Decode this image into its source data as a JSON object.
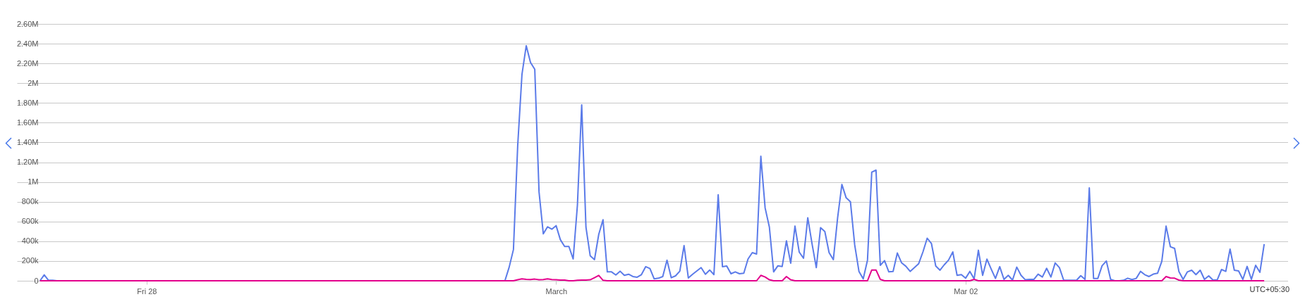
{
  "chart_data": {
    "type": "line",
    "x": [
      "--02-27T17:45",
      "--02-27T18:00",
      "--02-27T18:15",
      "--02-27T18:30",
      "--02-27T18:45",
      "--02-27T21:00",
      "--02-28T00:00",
      "--02-28T03:00",
      "--02-28T06:00",
      "--02-28T09:00",
      "--02-28T12:00",
      "--02-28T15:00",
      "--02-28T18:00",
      "--02-28T20:45",
      "--02-28T21:00",
      "--02-28T21:15",
      "--02-28T21:30",
      "--02-28T21:45",
      "--02-28T22:00",
      "--02-28T22:15",
      "--02-28T22:30",
      "--02-28T22:45",
      "--02-28T23:00",
      "--02-28T23:15",
      "--02-28T23:30",
      "--02-28T23:45",
      "--03-01T00:00",
      "--03-01T00:15",
      "--03-01T00:30",
      "--03-01T00:45",
      "--03-01T01:00",
      "--03-01T01:15",
      "--03-01T01:30",
      "--03-01T01:45",
      "--03-01T02:00",
      "--03-01T02:15",
      "--03-01T02:30",
      "--03-01T02:45",
      "--03-01T03:00",
      "--03-01T03:15",
      "--03-01T03:30",
      "--03-01T03:45",
      "--03-01T04:00",
      "--03-01T04:15",
      "--03-01T04:30",
      "--03-01T04:45",
      "--03-01T05:00",
      "--03-01T05:15",
      "--03-01T05:30",
      "--03-01T05:45",
      "--03-01T06:00",
      "--03-01T06:15",
      "--03-01T06:30",
      "--03-01T06:45",
      "--03-01T07:00",
      "--03-01T07:15",
      "--03-01T07:30",
      "--03-01T07:45",
      "--03-01T08:00",
      "--03-01T08:15",
      "--03-01T08:30",
      "--03-01T08:45",
      "--03-01T09:00",
      "--03-01T09:15",
      "--03-01T09:30",
      "--03-01T09:45",
      "--03-01T10:00",
      "--03-01T10:15",
      "--03-01T10:30",
      "--03-01T10:45",
      "--03-01T11:00",
      "--03-01T11:15",
      "--03-01T11:30",
      "--03-01T11:45",
      "--03-01T12:00",
      "--03-01T12:15",
      "--03-01T12:30",
      "--03-01T12:45",
      "--03-01T13:00",
      "--03-01T13:15",
      "--03-01T13:30",
      "--03-01T13:45",
      "--03-01T14:00",
      "--03-01T14:15",
      "--03-01T14:30",
      "--03-01T14:45",
      "--03-01T15:00",
      "--03-01T15:15",
      "--03-01T15:30",
      "--03-01T15:45",
      "--03-01T16:00",
      "--03-01T16:15",
      "--03-01T16:30",
      "--03-01T16:45",
      "--03-01T17:00",
      "--03-01T17:15",
      "--03-01T17:30",
      "--03-01T17:45",
      "--03-01T18:00",
      "--03-01T18:15",
      "--03-01T18:30",
      "--03-01T18:45",
      "--03-01T19:00",
      "--03-01T19:15",
      "--03-01T19:30",
      "--03-01T19:45",
      "--03-01T20:00",
      "--03-01T20:15",
      "--03-01T20:30",
      "--03-01T20:45",
      "--03-01T21:00",
      "--03-01T21:15",
      "--03-01T21:30",
      "--03-01T21:45",
      "--03-01T22:00",
      "--03-01T22:15",
      "--03-01T22:30",
      "--03-01T22:45",
      "--03-01T23:00",
      "--03-01T23:15",
      "--03-01T23:30",
      "--03-01T23:45",
      "--03-02T00:00",
      "--03-02T00:15",
      "--03-02T00:30",
      "--03-02T00:45",
      "--03-02T01:00",
      "--03-02T01:15",
      "--03-02T01:30",
      "--03-02T01:45",
      "--03-02T02:00",
      "--03-02T02:15",
      "--03-02T02:30",
      "--03-02T02:45",
      "--03-02T03:00",
      "--03-02T03:15",
      "--03-02T03:30",
      "--03-02T03:45",
      "--03-02T04:00",
      "--03-02T04:15",
      "--03-02T04:30",
      "--03-02T04:45",
      "--03-02T05:00",
      "--03-02T05:15",
      "--03-02T05:30",
      "--03-02T05:45",
      "--03-02T06:00",
      "--03-02T06:15",
      "--03-02T06:30",
      "--03-02T06:45",
      "--03-02T07:00",
      "--03-02T07:15",
      "--03-02T07:30",
      "--03-02T07:45",
      "--03-02T08:00",
      "--03-02T08:15",
      "--03-02T08:30",
      "--03-02T08:45",
      "--03-02T09:00",
      "--03-02T09:15",
      "--03-02T09:30",
      "--03-02T09:45",
      "--03-02T10:00",
      "--03-02T10:15",
      "--03-02T10:30",
      "--03-02T10:45",
      "--03-02T11:00",
      "--03-02T11:15",
      "--03-02T11:30",
      "--03-02T11:45",
      "--03-02T12:00",
      "--03-02T12:15",
      "--03-02T12:30",
      "--03-02T12:45",
      "--03-02T13:00",
      "--03-02T13:15",
      "--03-02T13:30",
      "--03-02T13:45",
      "--03-02T14:00",
      "--03-02T14:15",
      "--03-02T14:30",
      "--03-02T14:45",
      "--03-02T15:00",
      "--03-02T15:15",
      "--03-02T15:30",
      "--03-02T15:45",
      "--03-02T16:00",
      "--03-02T16:15",
      "--03-02T16:30",
      "--03-02T16:45",
      "--03-02T17:00",
      "--03-02T17:15",
      "--03-02T17:30"
    ],
    "series": [
      {
        "color": "#5b7be9",
        "values": [
          0,
          60000,
          5000,
          5000,
          0,
          0,
          0,
          0,
          0,
          0,
          0,
          0,
          0,
          0,
          0,
          138000,
          316000,
          1370000,
          2090000,
          2380000,
          2210000,
          2140000,
          900000,
          475000,
          546000,
          522000,
          558000,
          416000,
          347000,
          347000,
          221000,
          767000,
          1780000,
          542000,
          252000,
          214000,
          470000,
          618000,
          90000,
          90000,
          59000,
          97000,
          55000,
          66000,
          43000,
          36000,
          62000,
          143000,
          124000,
          19000,
          26000,
          43000,
          209000,
          31000,
          50000,
          97000,
          356000,
          29000,
          66000,
          100000,
          133000,
          66000,
          109000,
          62000,
          871000,
          143000,
          150000,
          71000,
          90000,
          71000,
          76000,
          221000,
          285000,
          271000,
          1260000,
          738000,
          543000,
          90000,
          152000,
          145000,
          404000,
          178000,
          553000,
          290000,
          228000,
          638000,
          375000,
          133000,
          537000,
          499000,
          285000,
          214000,
          638000,
          975000,
          840000,
          800000,
          364000,
          95000,
          19000,
          209000,
          1100000,
          1120000,
          157000,
          204000,
          90000,
          95000,
          281000,
          181000,
          147000,
          95000,
          133000,
          173000,
          292000,
          431000,
          376000,
          150000,
          107000,
          162000,
          209000,
          292000,
          55000,
          62000,
          26000,
          95000,
          19000,
          309000,
          55000,
          219000,
          119000,
          24000,
          143000,
          14000,
          55000,
          7000,
          138000,
          55000,
          10000,
          14000,
          14000,
          67000,
          38000,
          126000,
          38000,
          181000,
          133000,
          5000,
          5000,
          5000,
          5000,
          52000,
          14000,
          940000,
          24000,
          24000,
          152000,
          200000,
          14000,
          0,
          0,
          5000,
          26000,
          12000,
          24000,
          95000,
          62000,
          43000,
          67000,
          76000,
          197000,
          553000,
          345000,
          328000,
          95000,
          14000,
          90000,
          107000,
          62000,
          107000,
          14000,
          50000,
          7000,
          10000,
          114000,
          95000,
          321000,
          107000,
          100000,
          14000,
          145000,
          14000,
          157000,
          86000,
          371000
        ]
      },
      {
        "color": "#e3008c",
        "values": [
          0,
          0,
          0,
          0,
          0,
          0,
          0,
          0,
          0,
          0,
          0,
          0,
          0,
          0,
          0,
          0,
          0,
          10000,
          19000,
          14000,
          12000,
          17000,
          10000,
          12000,
          19000,
          12000,
          10000,
          7000,
          7000,
          0,
          0,
          5000,
          7000,
          7000,
          10000,
          31000,
          55000,
          5000,
          0,
          0,
          0,
          0,
          0,
          0,
          0,
          0,
          0,
          0,
          0,
          0,
          0,
          0,
          0,
          0,
          0,
          0,
          0,
          0,
          0,
          0,
          0,
          0,
          0,
          0,
          0,
          0,
          0,
          0,
          0,
          0,
          0,
          0,
          0,
          0,
          55000,
          38000,
          10000,
          0,
          0,
          0,
          43000,
          10000,
          0,
          0,
          0,
          0,
          0,
          0,
          0,
          0,
          0,
          0,
          0,
          0,
          0,
          0,
          0,
          0,
          0,
          0,
          109000,
          109000,
          14000,
          0,
          0,
          0,
          0,
          0,
          0,
          0,
          0,
          0,
          0,
          0,
          0,
          0,
          0,
          0,
          0,
          0,
          0,
          0,
          0,
          0,
          14000,
          0,
          0,
          0,
          0,
          0,
          0,
          0,
          0,
          0,
          0,
          0,
          0,
          0,
          0,
          0,
          0,
          0,
          0,
          0,
          0,
          0,
          0,
          0,
          0,
          0,
          0,
          0,
          0,
          0,
          0,
          0,
          0,
          0,
          0,
          0,
          0,
          0,
          0,
          0,
          0,
          0,
          0,
          0,
          0,
          43000,
          28000,
          26000,
          7000,
          0,
          0,
          0,
          0,
          0,
          0,
          0,
          0,
          0,
          0,
          0,
          0,
          0,
          0,
          0,
          0,
          0,
          0,
          0,
          0
        ]
      }
    ],
    "xlim": [
      "--02-27T16:24",
      "--03-02T18:54"
    ],
    "xticks": [
      {
        "value": "--02-28",
        "label": "Fri 28"
      },
      {
        "value": "--03-01",
        "label": "March"
      },
      {
        "value": "--03-02",
        "label": "Mar 02"
      }
    ],
    "ylim": [
      0,
      2600000
    ],
    "yticks": [
      0,
      {
        "value": 200000,
        "label": "200k"
      },
      {
        "value": 400000,
        "label": "400k"
      },
      {
        "value": 600000,
        "label": "600k"
      },
      {
        "value": 800000,
        "label": "800k"
      },
      {
        "value": 1000000,
        "label": "1M"
      },
      {
        "value": 1200000,
        "label": "1.20M"
      },
      {
        "value": 1400000,
        "label": "1.40M"
      },
      {
        "value": 1600000,
        "label": "1.60M"
      },
      {
        "value": 1800000,
        "label": "1.80M"
      },
      {
        "value": 2000000,
        "label": "2M"
      },
      {
        "value": 2200000,
        "label": "2.20M"
      },
      {
        "value": 2400000,
        "label": "2.40M"
      },
      {
        "value": 2600000,
        "label": "2.60M"
      }
    ],
    "grid": "y",
    "annotations": [
      "UTC+05:30"
    ]
  }
}
